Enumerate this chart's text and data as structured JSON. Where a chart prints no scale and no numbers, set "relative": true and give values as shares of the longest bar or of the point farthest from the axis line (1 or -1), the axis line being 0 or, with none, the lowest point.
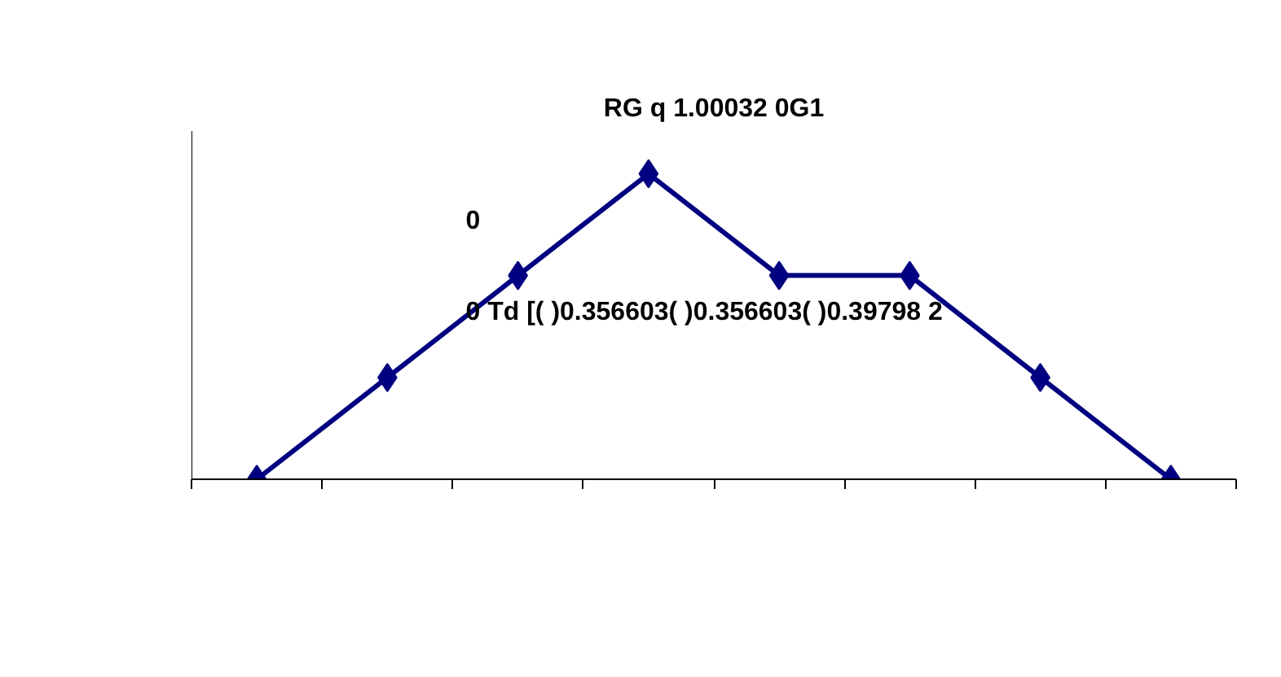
{
  "chart_data": {
    "type": "line",
    "title": "RG q 1.00032 0G1",
    "categories": [
      null,
      null,
      null,
      null,
      null,
      null,
      null,
      null
    ],
    "series": [
      {
        "color": "#000080",
        "values": [
          0,
          0.333,
          0.667,
          1,
          0.667,
          0.667,
          0.333,
          0
        ]
      }
    ],
    "relative": true,
    "marker": "diamond",
    "grid": false,
    "annotations": [
      "0",
      "0 Td [( )0.356603( )0.356603( )0.39798 2"
    ]
  }
}
